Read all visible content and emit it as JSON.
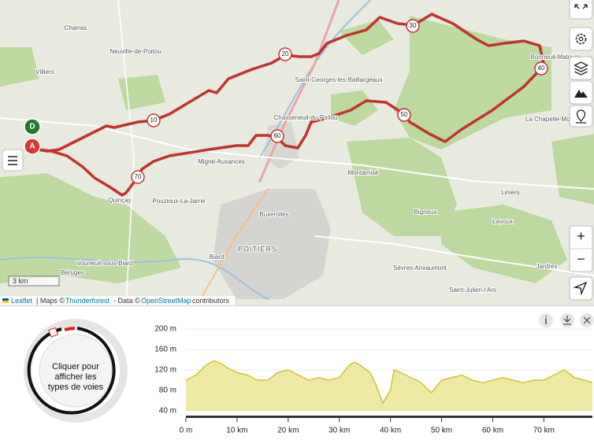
{
  "map": {
    "places": [
      "Charras",
      "Neuville-de-Poitou",
      "Villiers",
      "Saint-Georges-lès-Baillargeaux",
      "Chasseneuil-du-Poitou",
      "Bonneuil-Matours",
      "La Chapelle-Moulière",
      "Migné-Auxances",
      "Montamisé",
      "Liniers",
      "Bignoux",
      "Lavoux",
      "Buxerolles",
      "POITIERS",
      "Pouzioux-La-Jarrie",
      "Quinçay",
      "Vouneuil-sous-Biard",
      "Biard",
      "Béruges",
      "Sèvres-Anxaumont",
      "Jardres",
      "Saint-Julien-l'Ars"
    ],
    "km_markers": [
      "10",
      "20",
      "30",
      "40",
      "50",
      "60",
      "70"
    ],
    "start_marker": "D",
    "end_marker": "A",
    "scale": "3 km",
    "attribution": [
      "Leaflet",
      "| Maps ©",
      "Thunderforest",
      "- Data ©",
      "OpenStreetMap",
      "contributors"
    ],
    "zoom_in": "+",
    "zoom_out": "−"
  },
  "road_types_button": [
    "Cliquer pour",
    "afficher les",
    "types de voies"
  ],
  "elevation_chart": {
    "type": "area",
    "color": "#eeeaa6",
    "line_color": "#d3c236",
    "x": [
      0,
      2,
      4,
      5.5,
      7,
      8,
      10,
      12,
      14,
      16,
      18,
      20,
      22,
      24,
      26,
      28,
      30,
      32,
      33,
      34,
      36,
      37,
      38.5,
      40,
      40.7,
      42,
      44,
      46,
      48,
      50,
      52,
      54,
      56,
      58,
      60,
      62,
      64,
      66,
      68,
      70,
      72,
      74,
      76,
      78,
      79.5
    ],
    "values": [
      100,
      110,
      130,
      138,
      132,
      125,
      115,
      110,
      100,
      100,
      115,
      120,
      110,
      100,
      105,
      100,
      105,
      130,
      135,
      130,
      115,
      95,
      55,
      80,
      120,
      115,
      105,
      95,
      75,
      100,
      105,
      110,
      100,
      95,
      100,
      105,
      100,
      95,
      100,
      100,
      110,
      120,
      105,
      100,
      95
    ],
    "xlim": [
      0,
      79.5
    ],
    "ylim": [
      40,
      200
    ],
    "yticks": [
      {
        "value": 200,
        "label": "200 m"
      },
      {
        "value": 160,
        "label": "160 m"
      },
      {
        "value": 120,
        "label": "120 m"
      },
      {
        "value": 80,
        "label": "80 m"
      },
      {
        "value": 40,
        "label": "40 m"
      }
    ],
    "xticks": [
      {
        "value": 0,
        "label": "0 m"
      },
      {
        "value": 10,
        "label": "10 km"
      },
      {
        "value": 20,
        "label": "20 km"
      },
      {
        "value": 30,
        "label": "30 km"
      },
      {
        "value": 40,
        "label": "40 km"
      },
      {
        "value": 50,
        "label": "50 km"
      },
      {
        "value": 60,
        "label": "60 km"
      },
      {
        "value": 70,
        "label": "70 km"
      }
    ]
  }
}
